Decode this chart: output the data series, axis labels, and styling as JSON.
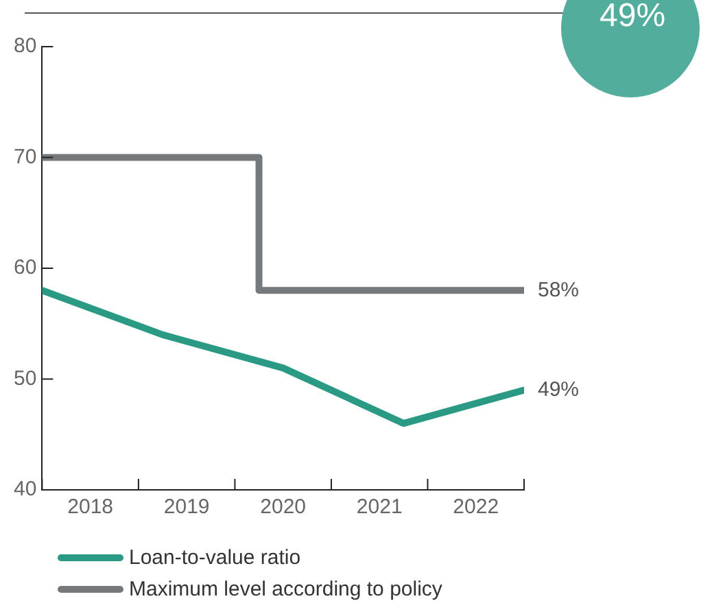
{
  "chart_data": {
    "type": "line",
    "xlim": [
      2017.5,
      2022.5
    ],
    "xticks": [
      {
        "value": 2017.5,
        "label": null
      },
      {
        "value": 2018,
        "label": "2018"
      },
      {
        "value": 2018.5,
        "label": null
      },
      {
        "value": 2019,
        "label": "2019"
      },
      {
        "value": 2019.5,
        "label": null
      },
      {
        "value": 2020,
        "label": "2020"
      },
      {
        "value": 2020.5,
        "label": null
      },
      {
        "value": 2021,
        "label": "2021"
      },
      {
        "value": 2021.5,
        "label": null
      },
      {
        "value": 2022,
        "label": "2022"
      },
      {
        "value": 2022.5,
        "label": null
      }
    ],
    "ylim": [
      40,
      80
    ],
    "yticks": [
      40,
      50,
      60,
      70,
      80
    ],
    "grid": false,
    "legend": "bottom",
    "marker": "none",
    "line_style": "solid",
    "series": [
      {
        "name": "Loan-to-value ratio",
        "type": "line",
        "color": "#2a9a84",
        "x": [
          2017.5,
          2018.75,
          2020.0,
          2021.25,
          2022.5
        ],
        "values": [
          58,
          54,
          51,
          46,
          49
        ],
        "value_labels": [
          null,
          null,
          null,
          null,
          "49%"
        ]
      },
      {
        "name": "Maximum level according to policy",
        "type": "step",
        "color": "#76797b",
        "x": [
          2017.5,
          2019.75,
          2022.5
        ],
        "values": [
          70,
          58,
          58
        ],
        "value_labels": [
          null,
          null,
          "58%"
        ]
      }
    ],
    "annotations": [
      "49%"
    ]
  }
}
